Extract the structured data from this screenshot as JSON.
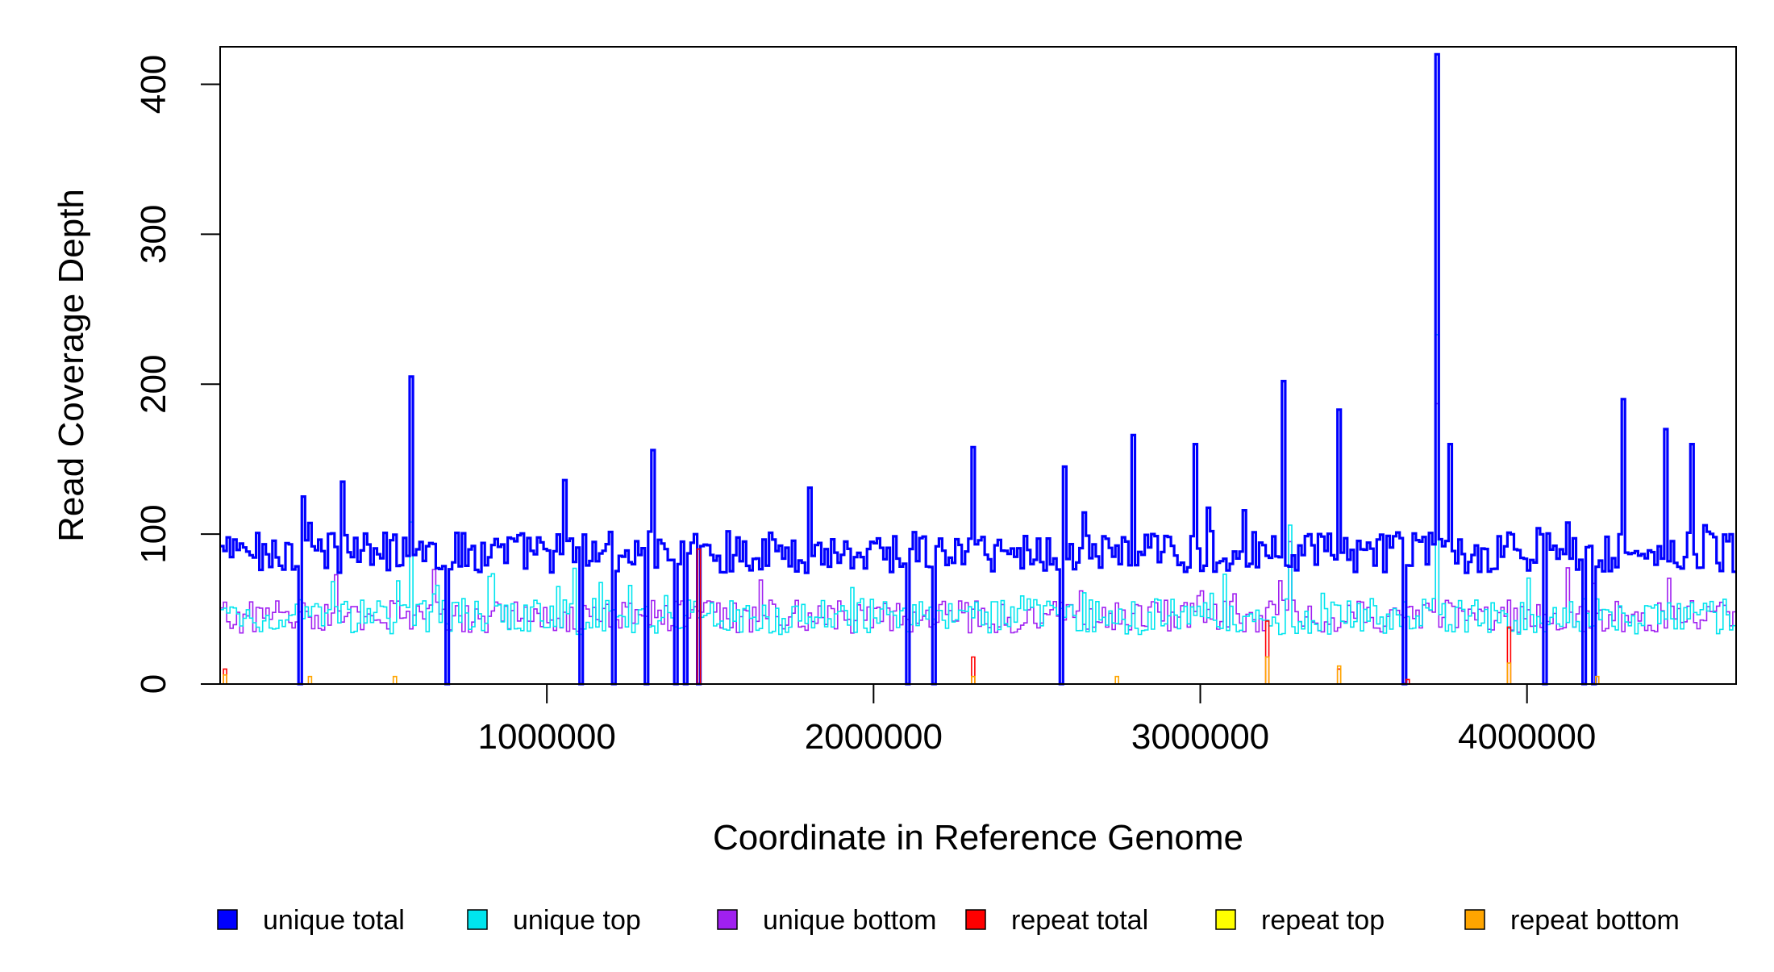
{
  "chart_data": {
    "type": "line",
    "xlabel": "Coordinate in Reference Genome",
    "ylabel": "Read Coverage Depth",
    "xlim": [
      0,
      4640000
    ],
    "ylim": [
      0,
      425
    ],
    "x_ticks": [
      1000000,
      2000000,
      3000000,
      4000000
    ],
    "x_tick_labels": [
      "1000000",
      "2000000",
      "3000000",
      "4000000"
    ],
    "y_ticks": [
      0,
      100,
      200,
      300,
      400
    ],
    "y_tick_labels": [
      "0",
      "100",
      "200",
      "300",
      "400"
    ],
    "grid": false,
    "legend_position": "bottom",
    "bin_size": 10000,
    "series": [
      {
        "name": "unique total",
        "color": "#0000ff",
        "baseline": 88,
        "noise": 14,
        "peaks": [
          [
            0,
            92
          ],
          [
            250000,
            125
          ],
          [
            370000,
            135
          ],
          [
            580000,
            205
          ],
          [
            1050000,
            136
          ],
          [
            1320000,
            156
          ],
          [
            2300000,
            158
          ],
          [
            2580000,
            145
          ],
          [
            2790000,
            166
          ],
          [
            2980000,
            160
          ],
          [
            3250000,
            202
          ],
          [
            3420000,
            183
          ],
          [
            3720000,
            420
          ],
          [
            3760000,
            160
          ],
          [
            4290000,
            190
          ],
          [
            4420000,
            170
          ],
          [
            4500000,
            160
          ]
        ],
        "dips": [
          [
            240000,
            0
          ],
          [
            690000,
            0
          ],
          [
            1100000,
            0
          ],
          [
            1200000,
            0
          ],
          [
            1300000,
            0
          ],
          [
            1390000,
            0
          ],
          [
            1420000,
            0
          ],
          [
            1460000,
            0
          ],
          [
            2100000,
            0
          ],
          [
            2180000,
            0
          ],
          [
            2570000,
            0
          ],
          [
            3620000,
            0
          ],
          [
            4050000,
            0
          ],
          [
            4170000,
            0
          ],
          [
            4200000,
            0
          ]
        ]
      },
      {
        "name": "unique top",
        "color": "#00e5ee",
        "baseline": 45,
        "noise": 12,
        "peaks": [
          [
            3720000,
            233
          ],
          [
            580000,
            108
          ],
          [
            3270000,
            106
          ]
        ],
        "dips": []
      },
      {
        "name": "unique bottom",
        "color": "#a020f0",
        "baseline": 45,
        "noise": 11,
        "peaks": [
          [
            3720000,
            187
          ],
          [
            3270000,
            95
          ]
        ],
        "dips": []
      },
      {
        "name": "repeat total",
        "color": "#ff0000",
        "baseline": 0,
        "noise": 0,
        "peaks": [
          [
            10000,
            10
          ],
          [
            1460000,
            90
          ],
          [
            2300000,
            18
          ],
          [
            3200000,
            42
          ],
          [
            3420000,
            10
          ],
          [
            3940000,
            38
          ],
          [
            3630000,
            3
          ]
        ],
        "dips": []
      },
      {
        "name": "repeat top",
        "color": "#ffff00",
        "baseline": 0,
        "noise": 0,
        "peaks": [],
        "dips": []
      },
      {
        "name": "repeat bottom",
        "color": "#ffa500",
        "baseline": 0,
        "noise": 0,
        "peaks": [
          [
            10000,
            6
          ],
          [
            270000,
            5
          ],
          [
            530000,
            5
          ],
          [
            2300000,
            5
          ],
          [
            2740000,
            5
          ],
          [
            3200000,
            18
          ],
          [
            3420000,
            12
          ],
          [
            3940000,
            14
          ],
          [
            4210000,
            5
          ]
        ],
        "dips": []
      }
    ]
  }
}
